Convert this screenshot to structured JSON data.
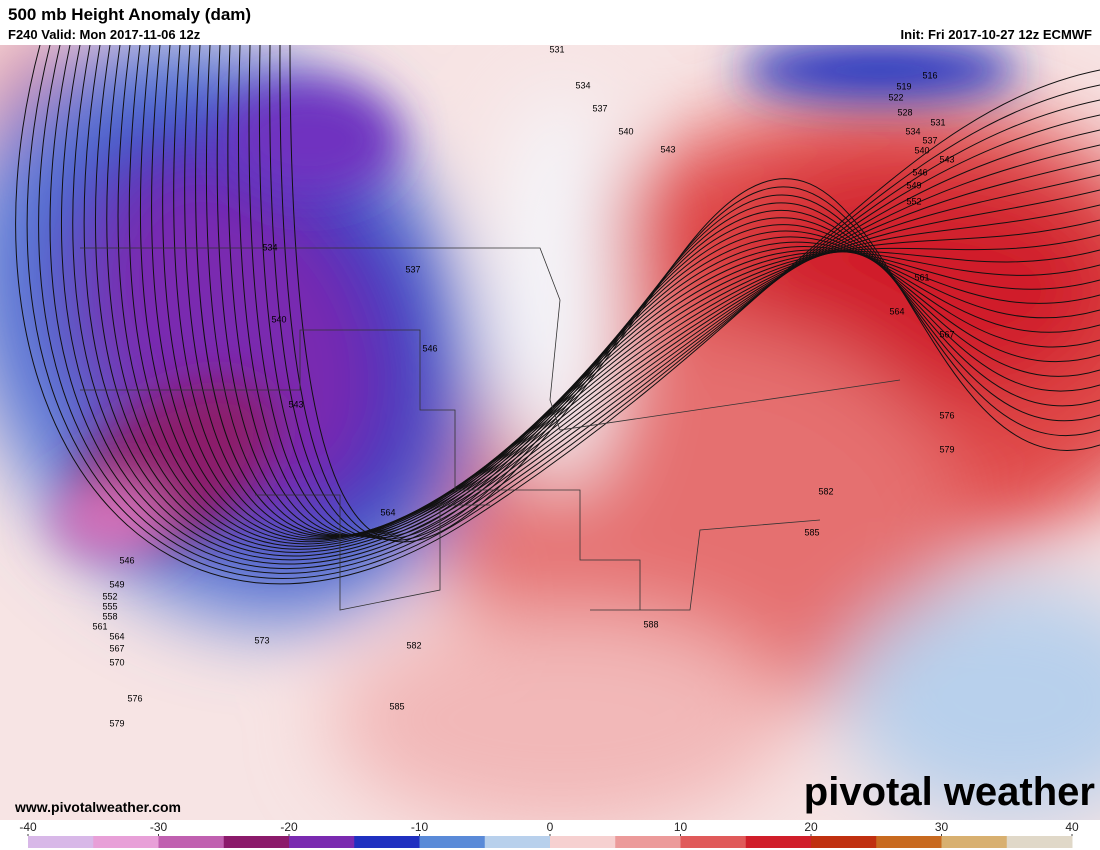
{
  "header": {
    "title": "500 mb Height Anomaly (dam)",
    "valid": "F240 Valid: Mon 2017-11-06 12z",
    "init": "Init: Fri 2017-10-27 12z ECMWF"
  },
  "contour_labels": [
    "531",
    "534",
    "537",
    "540",
    "543",
    "516",
    "519",
    "522",
    "528",
    "531",
    "534",
    "537",
    "540",
    "543",
    "546",
    "549",
    "552",
    "561",
    "564",
    "567",
    "576",
    "579",
    "582",
    "585",
    "588",
    "534",
    "537",
    "540",
    "546",
    "543",
    "564",
    "546",
    "549",
    "552",
    "555",
    "558",
    "561",
    "564",
    "567",
    "570",
    "573",
    "576",
    "579",
    "582",
    "585"
  ],
  "website": "www.pivotalweather.com",
  "watermark": "pivotal weather",
  "colorbar": {
    "range": [
      -40,
      40
    ],
    "ticks": [
      -40,
      -30,
      -20,
      -10,
      0,
      10,
      20,
      30,
      40
    ],
    "colors": [
      "#d8b8e8",
      "#e8a0d8",
      "#c060b0",
      "#8b1a6b",
      "#7a2ab0",
      "#2030c0",
      "#5a8ad8",
      "#b8d0ec",
      "#f6d0d0",
      "#ec9a9a",
      "#e05a5a",
      "#d01e2a",
      "#c03010",
      "#c86a20",
      "#d8b070",
      "#e0d8c8"
    ]
  }
}
